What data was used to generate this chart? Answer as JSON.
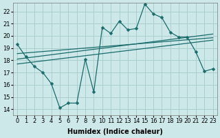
{
  "xlabel": "Humidex (Indice chaleur)",
  "background_color": "#cce8e8",
  "grid_color": "#aacfcf",
  "line_color": "#1a6b6b",
  "xlim": [
    -0.5,
    23.5
  ],
  "ylim": [
    13.5,
    22.7
  ],
  "yticks": [
    14,
    15,
    16,
    17,
    18,
    19,
    20,
    21,
    22
  ],
  "xticks": [
    0,
    1,
    2,
    3,
    4,
    5,
    6,
    7,
    8,
    9,
    10,
    11,
    12,
    13,
    14,
    15,
    16,
    17,
    18,
    19,
    20,
    21,
    22,
    23
  ],
  "xtick_labels": [
    "0",
    "1",
    "2",
    "3",
    "4",
    "5",
    "6",
    "7",
    "8",
    "9",
    "10",
    "11",
    "12",
    "13",
    "14",
    "15",
    "16",
    "17",
    "18",
    "19",
    "20",
    "21",
    "22",
    "23"
  ],
  "line1_x": [
    0,
    1,
    2,
    3,
    4,
    5,
    6,
    7,
    8,
    9,
    10,
    11,
    12,
    13,
    14,
    15,
    16,
    17,
    18,
    19,
    20,
    21,
    22,
    23
  ],
  "line1_y": [
    19.3,
    18.3,
    17.5,
    17.0,
    16.1,
    14.1,
    14.5,
    14.5,
    18.1,
    15.4,
    20.7,
    20.2,
    21.2,
    20.5,
    20.6,
    22.6,
    21.8,
    21.5,
    20.3,
    19.9,
    19.9,
    18.7,
    17.1,
    17.3
  ],
  "trend1_x": [
    0,
    23
  ],
  "trend1_y": [
    18.55,
    19.85
  ],
  "trend2_x": [
    0,
    23
  ],
  "trend2_y": [
    18.1,
    20.15
  ],
  "trend3_x": [
    0,
    23
  ],
  "trend3_y": [
    17.7,
    19.65
  ],
  "marker_size": 2.5,
  "font_size": 6,
  "xlabel_fontsize": 7
}
